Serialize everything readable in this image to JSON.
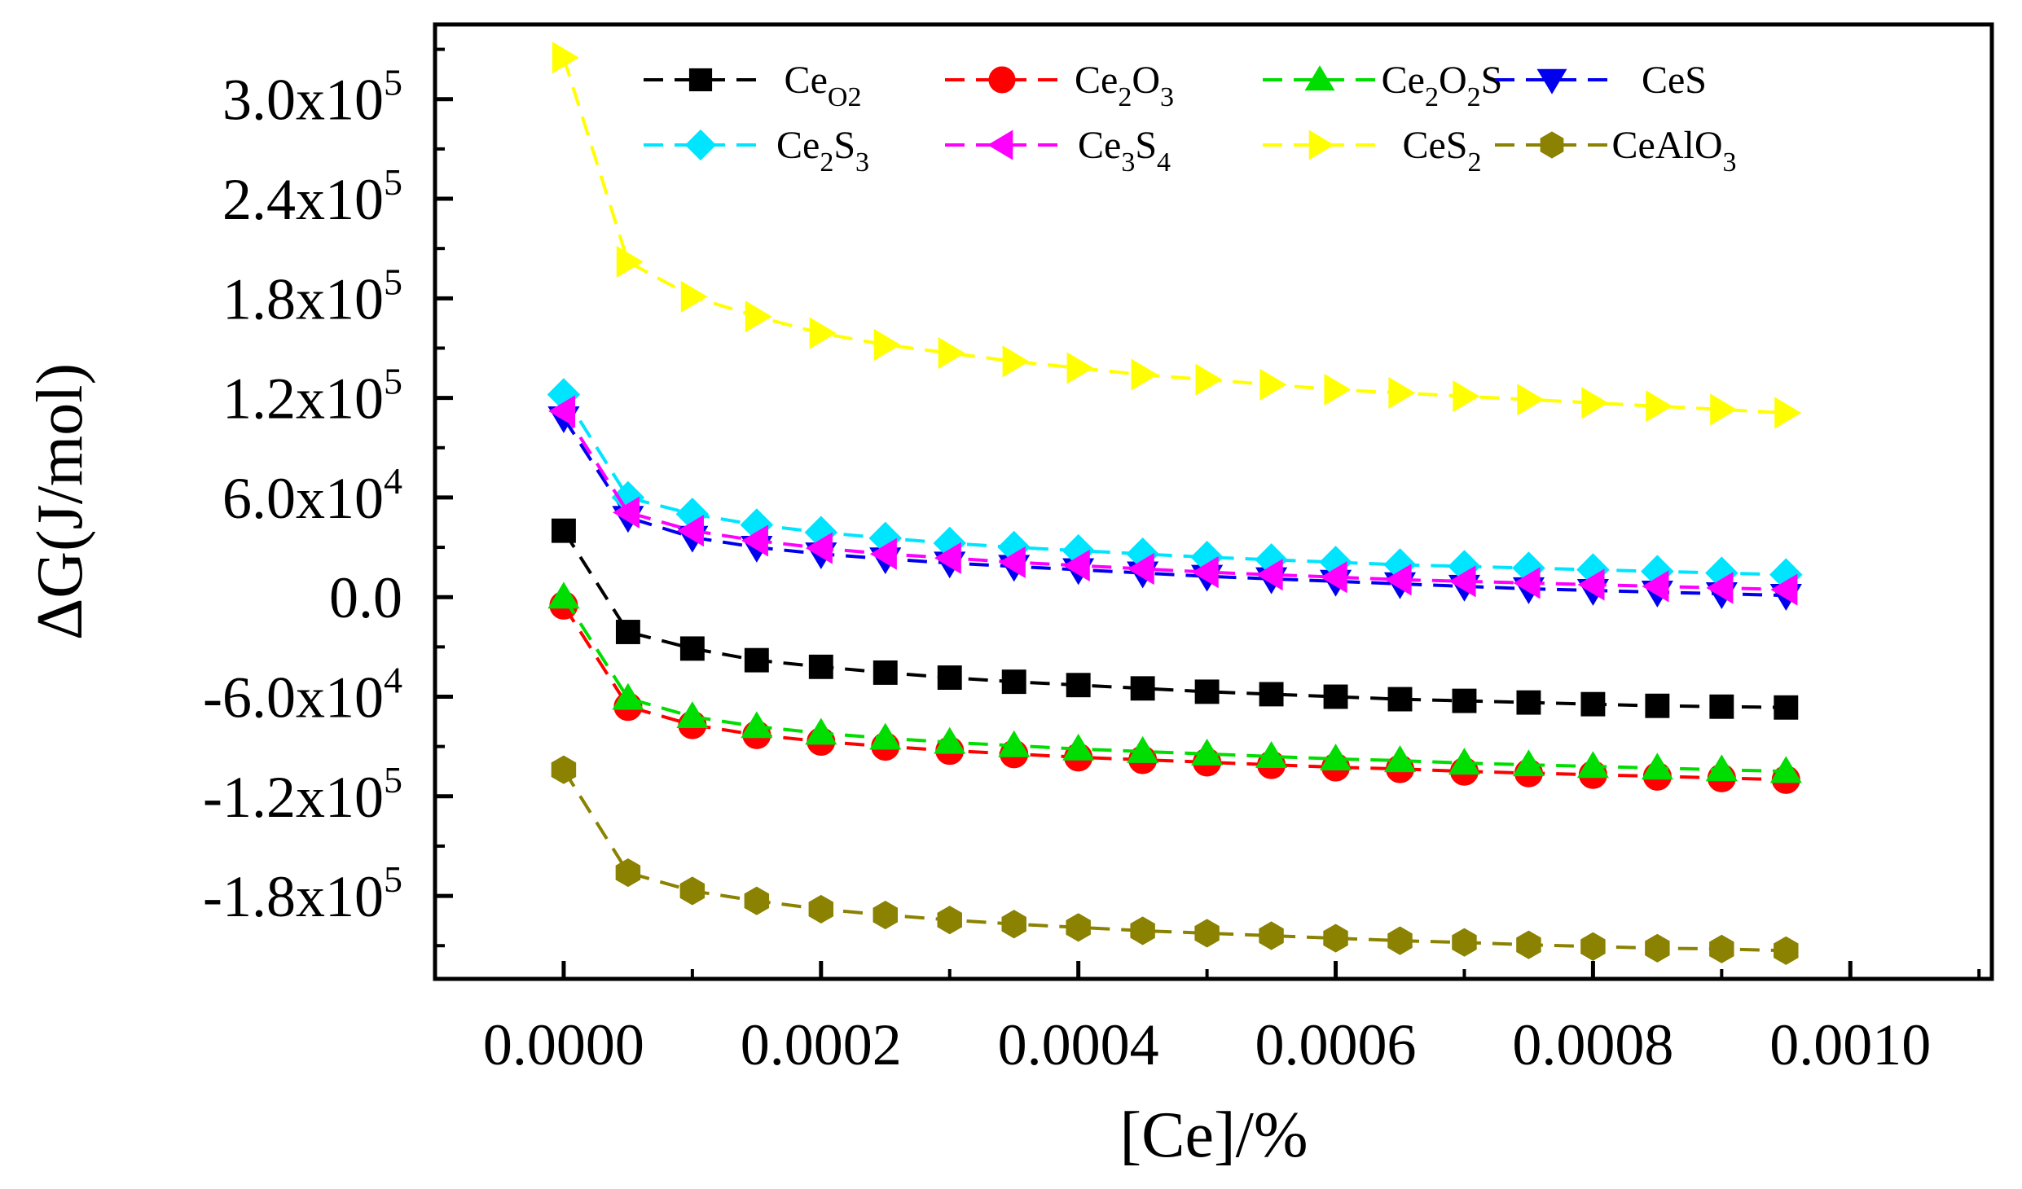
{
  "chart_data": {
    "type": "line",
    "title": "",
    "xlabel": "[Ce]/%",
    "ylabel": "ΔG(J/mol)",
    "xlim": [
      -0.0001,
      0.00111
    ],
    "ylim": [
      -230000,
      345000
    ],
    "grid": false,
    "legend_position": "top-right",
    "x_ticks": [
      0.0,
      0.0002,
      0.0004,
      0.0006,
      0.0008,
      0.001
    ],
    "x_tick_labels": [
      "0.0000",
      "0.0002",
      "0.0004",
      "0.0006",
      "0.0008",
      "0.0010"
    ],
    "y_ticks": [
      -180000,
      -120000,
      -60000,
      0,
      60000,
      120000,
      180000,
      240000,
      300000
    ],
    "y_tick_labels": [
      {
        "mant": "-1.8x10",
        "exp": "5"
      },
      {
        "mant": "-1.2x10",
        "exp": "5"
      },
      {
        "mant": "-6.0x10",
        "exp": "4"
      },
      {
        "mant": "0.0",
        "exp": ""
      },
      {
        "mant": "6.0x10",
        "exp": "4"
      },
      {
        "mant": "1.2x10",
        "exp": "5"
      },
      {
        "mant": "1.8x10",
        "exp": "5"
      },
      {
        "mant": "2.4x10",
        "exp": "5"
      },
      {
        "mant": "3.0x10",
        "exp": "5"
      }
    ],
    "x": [
      0.0,
      5e-05,
      0.0001,
      0.00015,
      0.0002,
      0.00025,
      0.0003,
      0.00035,
      0.0004,
      0.00045,
      0.0005,
      0.00055,
      0.0006,
      0.00065,
      0.0007,
      0.00075,
      0.0008,
      0.00085,
      0.0009,
      0.00095
    ],
    "series": [
      {
        "name": "CeO2",
        "label_parts": [
          [
            "Ce",
            ""
          ],
          [
            "O",
            "sub"
          ],
          [
            "2",
            "sub"
          ]
        ],
        "color": "#000000",
        "marker": "square",
        "values": [
          40000,
          -21000,
          -31000,
          -38000,
          -42000,
          -45500,
          -48500,
          -51000,
          -53000,
          -55000,
          -57000,
          -58500,
          -60000,
          -61500,
          -62500,
          -63500,
          -64500,
          -65500,
          -66000,
          -66500
        ]
      },
      {
        "name": "Ce2O3",
        "label_parts": [
          [
            "Ce",
            ""
          ],
          [
            "2",
            "sub"
          ],
          [
            "O",
            ""
          ],
          [
            "3",
            "sub"
          ]
        ],
        "color": "#ff0000",
        "marker": "circle",
        "values": [
          -5000,
          -66000,
          -77000,
          -83000,
          -87000,
          -90000,
          -92500,
          -94500,
          -96500,
          -98000,
          -99500,
          -101000,
          -102500,
          -103500,
          -105000,
          -106000,
          -107000,
          -108000,
          -109000,
          -110000
        ]
      },
      {
        "name": "Ce2O2S",
        "label_parts": [
          [
            "Ce",
            ""
          ],
          [
            "2",
            "sub"
          ],
          [
            "O",
            ""
          ],
          [
            "2",
            "sub"
          ],
          [
            "S",
            ""
          ]
        ],
        "color": "#00dd00",
        "marker": "triangle-up",
        "values": [
          0,
          -61000,
          -72000,
          -78000,
          -82000,
          -85000,
          -87500,
          -89500,
          -91500,
          -93000,
          -94500,
          -96000,
          -97500,
          -98500,
          -100000,
          -101000,
          -102000,
          -103000,
          -104000,
          -105000
        ]
      },
      {
        "name": "CeS",
        "label_parts": [
          [
            "CeS",
            ""
          ]
        ],
        "color": "#0000ee",
        "marker": "triangle-down",
        "values": [
          108000,
          48000,
          36000,
          30000,
          26000,
          23000,
          20500,
          18500,
          16500,
          14500,
          12500,
          11000,
          9500,
          8000,
          6500,
          5000,
          4000,
          3000,
          2000,
          1000
        ]
      },
      {
        "name": "Ce2S3",
        "label_parts": [
          [
            "Ce",
            ""
          ],
          [
            "2",
            "sub"
          ],
          [
            "S",
            ""
          ],
          [
            "3",
            "sub"
          ]
        ],
        "color": "#00e5ff",
        "marker": "diamond",
        "values": [
          122000,
          60000,
          50000,
          43500,
          39000,
          35500,
          32500,
          30000,
          28000,
          26000,
          24000,
          22500,
          21000,
          19500,
          18500,
          17500,
          16500,
          15500,
          14500,
          13500
        ]
      },
      {
        "name": "Ce3S4",
        "label_parts": [
          [
            "Ce",
            ""
          ],
          [
            "3",
            "sub"
          ],
          [
            "S",
            ""
          ],
          [
            "4",
            "sub"
          ]
        ],
        "color": "#ff00ff",
        "marker": "triangle-left",
        "values": [
          112000,
          51000,
          40000,
          34000,
          29500,
          26000,
          23500,
          21000,
          19000,
          17000,
          15000,
          13500,
          12000,
          10500,
          9500,
          8500,
          7500,
          6500,
          5500,
          4500
        ]
      },
      {
        "name": "CeS2",
        "label_parts": [
          [
            "CeS",
            ""
          ],
          [
            "2",
            "sub"
          ]
        ],
        "color": "#ffff00",
        "marker": "triangle-right",
        "values": [
          325000,
          202000,
          181000,
          169000,
          159000,
          152000,
          147000,
          142000,
          138000,
          134000,
          131000,
          128000,
          125000,
          123000,
          121000,
          119000,
          117000,
          115000,
          113000,
          111000
        ]
      },
      {
        "name": "CeAlO3",
        "label_parts": [
          [
            "CeAlO",
            ""
          ],
          [
            "3",
            "sub"
          ]
        ],
        "color": "#8a8200",
        "marker": "hexagon",
        "values": [
          -104000,
          -166000,
          -177000,
          -183000,
          -188000,
          -191500,
          -194500,
          -197000,
          -199000,
          -201000,
          -202500,
          -204000,
          -205500,
          -207000,
          -208000,
          -209500,
          -210500,
          -211500,
          -212000,
          -213000
        ]
      }
    ]
  }
}
